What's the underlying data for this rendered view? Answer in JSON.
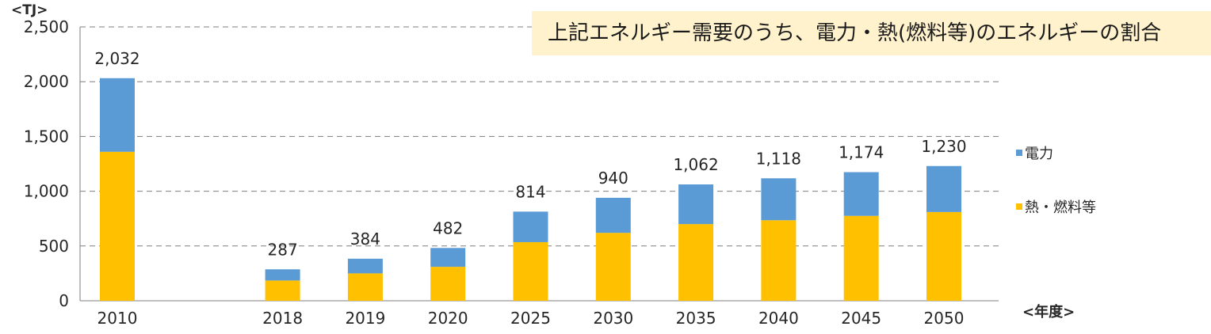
{
  "callout": {
    "text": "上記エネルギー需要のうち、電力・熱(燃料等)のエネルギーの割合"
  },
  "chart_data": {
    "type": "bar",
    "stacked": true,
    "categories": [
      "2010",
      "2018",
      "2019",
      "2020",
      "2025",
      "2030",
      "2035",
      "2040",
      "2045",
      "2050"
    ],
    "category_gap_after_first": true,
    "series": [
      {
        "name": "熱・燃料等",
        "color": "#ffc000",
        "values": [
          1360,
          185,
          250,
          310,
          535,
          620,
          700,
          735,
          775,
          810
        ]
      },
      {
        "name": "電力",
        "color": "#5b9bd5",
        "values": [
          672,
          102,
          134,
          172,
          279,
          320,
          362,
          383,
          399,
          420
        ]
      }
    ],
    "totals": [
      2032,
      287,
      384,
      482,
      814,
      940,
      1062,
      1118,
      1174,
      1230
    ],
    "total_labels": [
      "2,032",
      "287",
      "384",
      "482",
      "814",
      "940",
      "1,062",
      "1,118",
      "1,174",
      "1,230"
    ],
    "yticks": [
      0,
      500,
      1000,
      1500,
      2000,
      2500
    ],
    "ytick_labels": [
      "0",
      "500",
      "1,000",
      "1,500",
      "2,000",
      "2,500"
    ],
    "ylim": [
      0,
      2500
    ],
    "ylabel": "<TJ>",
    "xlabel": "<年度>",
    "grid": "dashed-horizontal",
    "legend": {
      "position": "right",
      "order": [
        "電力",
        "熱・燃料等"
      ]
    }
  }
}
